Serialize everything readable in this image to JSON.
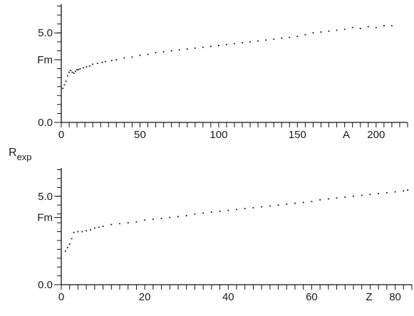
{
  "shared_ylabel": {
    "main": "R",
    "sub": "exp"
  },
  "chart_data": [
    {
      "type": "scatter",
      "xlabel": "A",
      "xlim": [
        0,
        220
      ],
      "ylim": [
        0,
        6.6
      ],
      "x_ticks": [
        {
          "value": 0,
          "label": "0"
        },
        {
          "value": 50,
          "label": "50"
        },
        {
          "value": 100,
          "label": "100"
        },
        {
          "value": 150,
          "label": "150"
        },
        {
          "value": 200,
          "label": "200"
        }
      ],
      "y_ticks": [
        {
          "value": 0,
          "label": "0.0"
        },
        {
          "value": 3.5,
          "label": "Fm"
        },
        {
          "value": 5.0,
          "label": "5.0"
        }
      ],
      "minor_x_step": 5,
      "minor_y_step": 0.5,
      "series": [
        {
          "x": [
            1,
            2,
            3,
            4,
            5,
            6,
            7,
            8,
            9,
            10,
            11,
            12,
            14,
            16,
            18,
            20,
            23,
            26,
            28,
            32,
            35,
            40,
            45,
            50,
            55,
            60,
            65,
            70,
            75,
            80,
            85,
            90,
            95,
            100,
            105,
            110,
            115,
            120,
            125,
            130,
            135,
            140,
            145,
            150,
            155,
            160,
            165,
            170,
            175,
            180,
            185,
            190,
            195,
            200,
            205,
            210
          ],
          "y": [
            1.9,
            2.1,
            2.3,
            2.6,
            2.8,
            2.9,
            2.8,
            2.75,
            2.85,
            2.95,
            2.95,
            3.0,
            3.05,
            3.1,
            3.15,
            3.25,
            3.3,
            3.35,
            3.4,
            3.45,
            3.5,
            3.6,
            3.65,
            3.75,
            3.8,
            3.9,
            3.95,
            4.0,
            4.05,
            4.1,
            4.15,
            4.2,
            4.25,
            4.3,
            4.35,
            4.4,
            4.45,
            4.5,
            4.55,
            4.6,
            4.65,
            4.7,
            4.75,
            4.8,
            4.9,
            5.0,
            5.05,
            5.1,
            5.15,
            5.2,
            5.3,
            5.25,
            5.35,
            5.3,
            5.4,
            5.4
          ]
        }
      ]
    },
    {
      "type": "scatter",
      "xlabel": "Z",
      "xlim": [
        0,
        84
      ],
      "ylim": [
        0,
        6.6
      ],
      "x_ticks": [
        {
          "value": 0,
          "label": "0"
        },
        {
          "value": 20,
          "label": "20"
        },
        {
          "value": 40,
          "label": "40"
        },
        {
          "value": 60,
          "label": "60"
        },
        {
          "value": 80,
          "label": "80"
        }
      ],
      "y_ticks": [
        {
          "value": 0,
          "label": "0.0"
        },
        {
          "value": 3.8,
          "label": "Fm"
        },
        {
          "value": 5.0,
          "label": "5.0"
        }
      ],
      "minor_x_step": 2,
      "minor_y_step": 0.5,
      "series": [
        {
          "x": [
            1,
            1.5,
            2,
            2.5,
            3,
            4,
            5,
            6,
            7,
            8,
            9,
            10,
            12,
            14,
            16,
            18,
            20,
            22,
            24,
            26,
            28,
            30,
            32,
            34,
            36,
            38,
            40,
            42,
            44,
            46,
            48,
            50,
            52,
            54,
            56,
            58,
            60,
            62,
            64,
            66,
            68,
            70,
            72,
            74,
            76,
            78,
            80,
            82,
            83
          ],
          "y": [
            1.9,
            2.1,
            2.3,
            2.6,
            2.95,
            3.0,
            3.0,
            3.05,
            3.1,
            3.2,
            3.25,
            3.3,
            3.4,
            3.45,
            3.5,
            3.55,
            3.65,
            3.7,
            3.75,
            3.8,
            3.85,
            3.9,
            4.0,
            4.05,
            4.1,
            4.15,
            4.2,
            4.25,
            4.3,
            4.35,
            4.4,
            4.45,
            4.5,
            4.55,
            4.6,
            4.65,
            4.7,
            4.8,
            4.85,
            4.9,
            4.95,
            5.0,
            5.05,
            5.1,
            5.15,
            5.2,
            5.25,
            5.3,
            5.35
          ]
        }
      ]
    }
  ]
}
